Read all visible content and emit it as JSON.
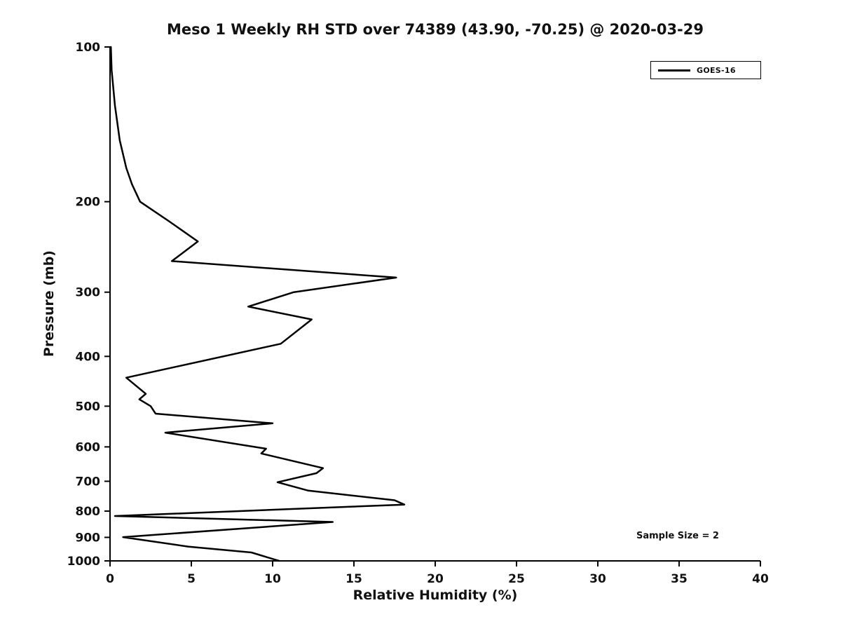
{
  "chart_data": {
    "type": "line",
    "title": "Meso 1 Weekly RH STD over 74389 (43.90, -70.25) @ 2020-03-29",
    "xlabel": "Relative Humidity (%)",
    "ylabel": "Pressure (mb)",
    "xlim": [
      0,
      40
    ],
    "ylim": [
      100,
      1000
    ],
    "y_scale": "log",
    "y_axis_inverted": true,
    "x_ticks": [
      0,
      5,
      10,
      15,
      20,
      25,
      30,
      35,
      40
    ],
    "y_ticks": [
      100,
      200,
      300,
      400,
      500,
      600,
      700,
      800,
      900,
      1000
    ],
    "grid": false,
    "legend_position": "upper right",
    "annotation": "Sample Size = 2",
    "line_color": "#000000",
    "series": [
      {
        "name": "GOES-16",
        "color": "#000000",
        "points": [
          [
            100,
            0.05
          ],
          [
            111,
            0.1
          ],
          [
            130,
            0.3
          ],
          [
            152,
            0.6
          ],
          [
            172,
            1.0
          ],
          [
            185,
            1.35
          ],
          [
            200,
            1.85
          ],
          [
            218,
            3.6
          ],
          [
            239,
            5.4
          ],
          [
            261,
            3.8
          ],
          [
            281,
            17.6
          ],
          [
            300,
            11.3
          ],
          [
            320,
            8.5
          ],
          [
            339,
            12.4
          ],
          [
            378,
            10.5
          ],
          [
            440,
            1.0
          ],
          [
            473,
            2.2
          ],
          [
            485,
            1.8
          ],
          [
            500,
            2.5
          ],
          [
            517,
            2.8
          ],
          [
            540,
            10.0
          ],
          [
            563,
            3.4
          ],
          [
            605,
            9.6
          ],
          [
            618,
            9.3
          ],
          [
            660,
            13.1
          ],
          [
            675,
            12.7
          ],
          [
            703,
            10.3
          ],
          [
            730,
            12.2
          ],
          [
            762,
            17.5
          ],
          [
            777,
            18.1
          ],
          [
            818,
            0.3
          ],
          [
            840,
            13.7
          ],
          [
            899,
            0.8
          ],
          [
            938,
            4.8
          ],
          [
            963,
            8.7
          ],
          [
            1000,
            10.4
          ]
        ]
      }
    ]
  }
}
